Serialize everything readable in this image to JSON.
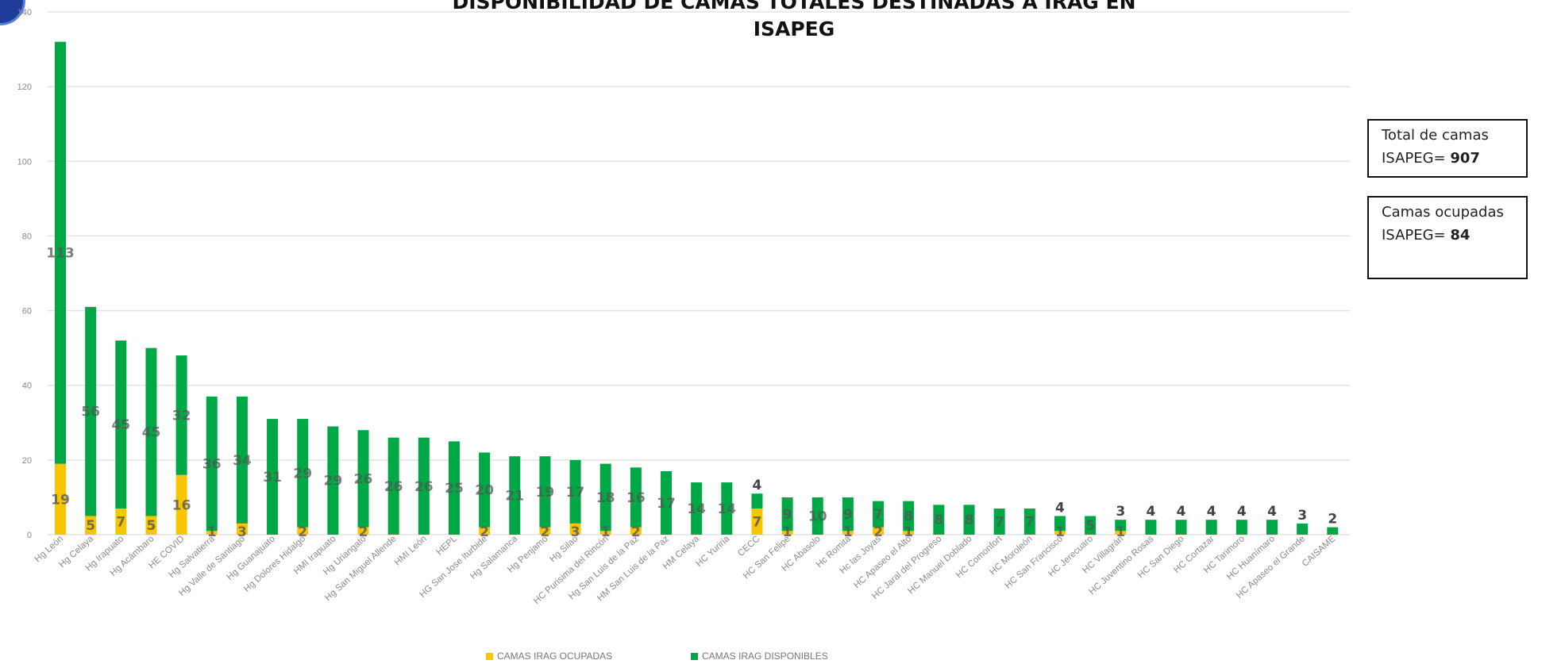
{
  "chart_data": {
    "type": "bar",
    "stacked": true,
    "title_line1": "DISPONIBILIDAD DE CAMAS TOTALES DESTINADAS A IRAG EN",
    "title_line2": "ISAPEG",
    "ylim": [
      0,
      140
    ],
    "yticks": [
      0,
      20,
      40,
      60,
      80,
      100,
      120,
      140
    ],
    "grid": true,
    "legend_position": "bottom",
    "categories": [
      "Hg León",
      "Hg Celaya",
      "Hg Irapuato",
      "Hg Acámbaro",
      "HE COVID",
      "Hg Salvatierra",
      "Hg Valle de Santiago",
      "Hg Guanajuato",
      "Hg Dolores Hidalgo",
      "HMI Irapuato",
      "Hg Uriangato",
      "Hg San Miguel Allende",
      "HMI León",
      "HEPL",
      "HG San Jose Iturbide",
      "Hg Salamanca",
      "Hg Penjamo",
      "Hg Silao",
      "HC Purisima del Rincón",
      "Hg San Luis de la Paz",
      "HM San Luis de la Paz",
      "HM Celaya",
      "HC Yuriria",
      "CECC",
      "HC San Felipe",
      "HC Abasolo",
      "Hc Romita",
      "Hc las Joyas",
      "HC Apaseo el Alto",
      "HC Jaral del Progreso",
      "HC Manuel Doblado",
      "HC Comonfort",
      "HC Moroleón",
      "HC San Francisco",
      "HC Jerecuaro",
      "HC Villagrán",
      "HC Juventino Rosas",
      "HC San Diego",
      "HC Cortazar",
      "HC Tarimoro",
      "HC Huanímaro",
      "HC Apaseo el Grande",
      "CAISAME"
    ],
    "series": [
      {
        "name": "CAMAS IRAG OCUPADAS",
        "color": "#f7c600",
        "values": [
          19,
          5,
          7,
          5,
          16,
          1,
          3,
          0,
          2,
          0,
          2,
          0,
          0,
          0,
          2,
          0,
          2,
          3,
          1,
          2,
          0,
          0,
          0,
          7,
          1,
          0,
          1,
          2,
          1,
          0,
          0,
          0,
          0,
          1,
          0,
          1,
          0,
          0,
          0,
          0,
          0,
          0,
          0
        ]
      },
      {
        "name": "CAMAS IRAG  DISPONIBLES",
        "color": "#00a845",
        "values": [
          113,
          56,
          45,
          45,
          32,
          36,
          34,
          31,
          29,
          29,
          26,
          26,
          26,
          25,
          20,
          21,
          19,
          17,
          18,
          16,
          17,
          14,
          14,
          4,
          9,
          10,
          9,
          7,
          8,
          8,
          8,
          7,
          7,
          4,
          5,
          3,
          4,
          4,
          4,
          4,
          4,
          3,
          2
        ]
      }
    ],
    "dark_label_indices": [
      23,
      33,
      35,
      36,
      37,
      38,
      39,
      40,
      41,
      42
    ]
  },
  "info": {
    "box1_text": "Total de camas ISAPEG=",
    "box1_value": "907",
    "box2_text": "Camas ocupadas ISAPEG=",
    "box2_value": "84"
  }
}
